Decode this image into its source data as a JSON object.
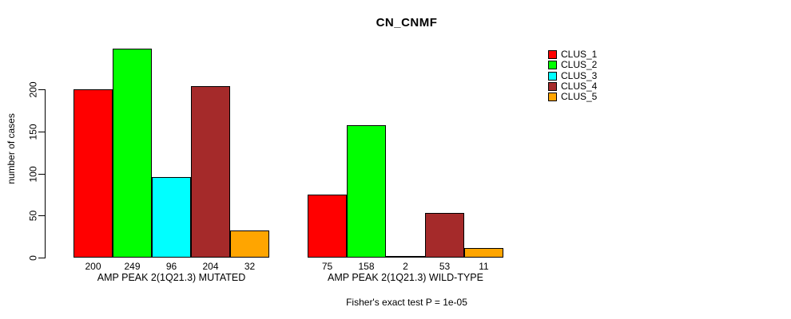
{
  "title": "CN_CNMF",
  "chart_data": {
    "type": "bar",
    "title": "CN_CNMF",
    "ylabel": "number of cases",
    "xlabel": "",
    "yticks": [
      0,
      50,
      100,
      150,
      200
    ],
    "ylim": [
      0,
      260
    ],
    "grid": false,
    "legend_position": "right-outside",
    "categories": [
      "AMP PEAK 2(1Q21.3) MUTATED",
      "AMP PEAK 2(1Q21.3) WILD-TYPE"
    ],
    "series": [
      {
        "name": "CLUS_1",
        "color": "#FF0000",
        "values": [
          200,
          75
        ]
      },
      {
        "name": "CLUS_2",
        "color": "#00FF00",
        "values": [
          249,
          158
        ]
      },
      {
        "name": "CLUS_3",
        "color": "#00FFFF",
        "values": [
          96,
          2
        ]
      },
      {
        "name": "CLUS_4",
        "color": "#A52A2A",
        "values": [
          204,
          53
        ]
      },
      {
        "name": "CLUS_5",
        "color": "#FFA500",
        "values": [
          32,
          11
        ]
      }
    ],
    "bar_value_labels": true,
    "footnote": "Fisher's exact test P = 1e-05"
  }
}
